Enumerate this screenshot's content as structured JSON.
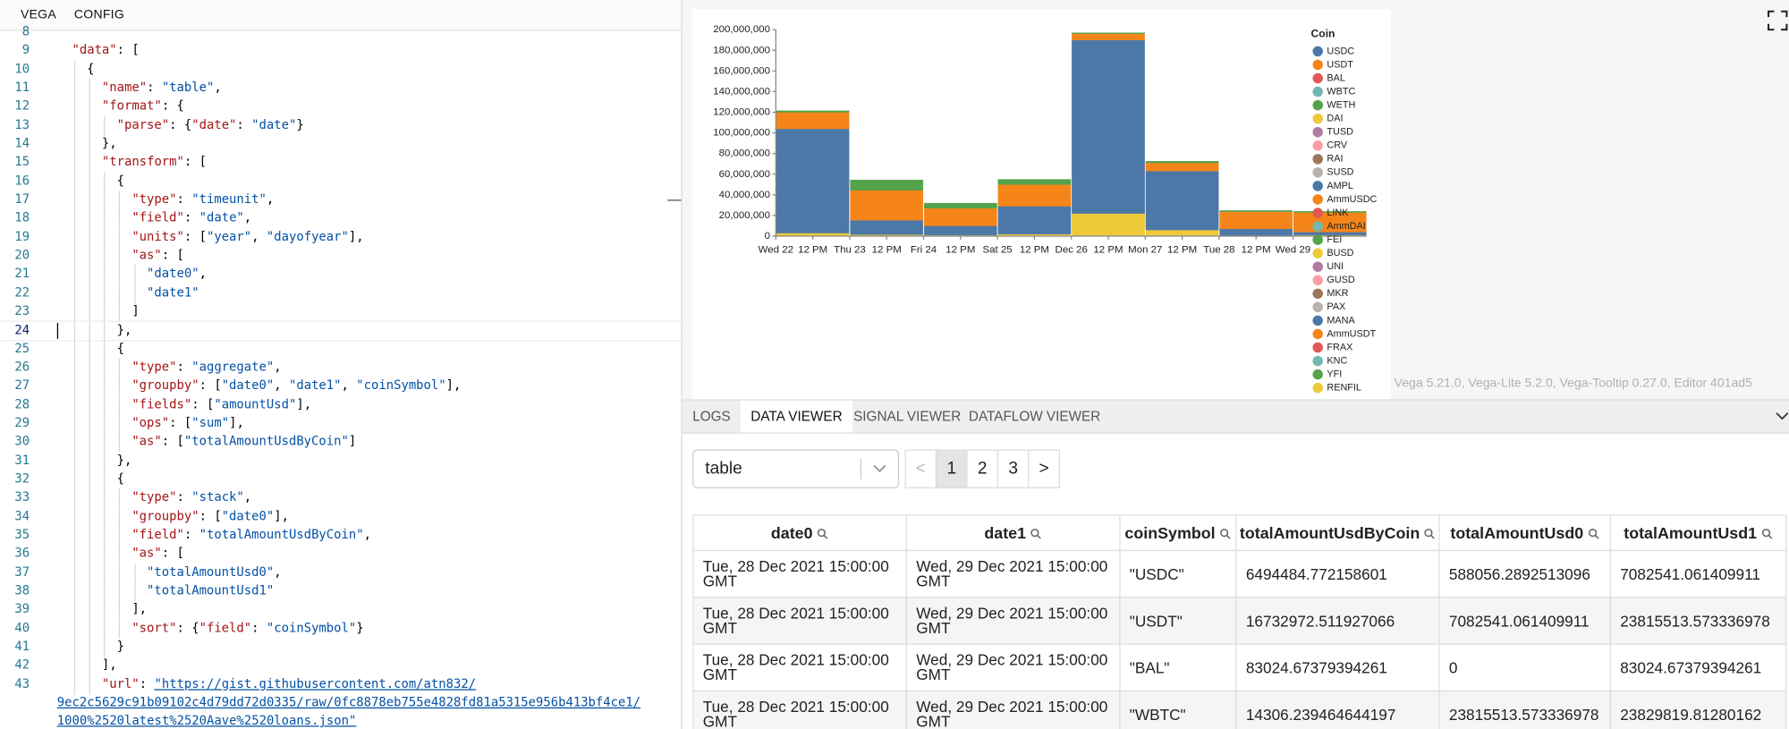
{
  "editor": {
    "tabs": [
      "VEGA",
      "CONFIG"
    ],
    "cursor_line": 24,
    "lines": [
      {
        "number": 8,
        "indent": 0,
        "tokens": []
      },
      {
        "number": 9,
        "indent": 1,
        "tokens": [
          [
            "\"data\"",
            "k"
          ],
          [
            ": [",
            "p"
          ]
        ]
      },
      {
        "number": 10,
        "indent": 2,
        "tokens": [
          [
            "{",
            "p"
          ]
        ]
      },
      {
        "number": 11,
        "indent": 3,
        "tokens": [
          [
            "\"name\"",
            "k"
          ],
          [
            ": ",
            "p"
          ],
          [
            "\"table\"",
            "s"
          ],
          [
            ",",
            "p"
          ]
        ]
      },
      {
        "number": 12,
        "indent": 3,
        "tokens": [
          [
            "\"format\"",
            "k"
          ],
          [
            ": {",
            "p"
          ]
        ]
      },
      {
        "number": 13,
        "indent": 4,
        "tokens": [
          [
            "\"parse\"",
            "k"
          ],
          [
            ": {",
            "p"
          ],
          [
            "\"date\"",
            "k"
          ],
          [
            ": ",
            "p"
          ],
          [
            "\"date\"",
            "s"
          ],
          [
            "}",
            "p"
          ]
        ]
      },
      {
        "number": 14,
        "indent": 3,
        "tokens": [
          [
            "},",
            "p"
          ]
        ]
      },
      {
        "number": 15,
        "indent": 3,
        "tokens": [
          [
            "\"transform\"",
            "k"
          ],
          [
            ": [",
            "p"
          ]
        ]
      },
      {
        "number": 16,
        "indent": 4,
        "tokens": [
          [
            "{",
            "p"
          ]
        ]
      },
      {
        "number": 17,
        "indent": 5,
        "tokens": [
          [
            "\"type\"",
            "k"
          ],
          [
            ": ",
            "p"
          ],
          [
            "\"timeunit\"",
            "s"
          ],
          [
            ",",
            "p"
          ]
        ]
      },
      {
        "number": 18,
        "indent": 5,
        "tokens": [
          [
            "\"field\"",
            "k"
          ],
          [
            ": ",
            "p"
          ],
          [
            "\"date\"",
            "s"
          ],
          [
            ",",
            "p"
          ]
        ]
      },
      {
        "number": 19,
        "indent": 5,
        "tokens": [
          [
            "\"units\"",
            "k"
          ],
          [
            ": [",
            "p"
          ],
          [
            "\"year\"",
            "s"
          ],
          [
            ", ",
            "p"
          ],
          [
            "\"dayofyear\"",
            "s"
          ],
          [
            "],",
            "p"
          ]
        ]
      },
      {
        "number": 20,
        "indent": 5,
        "tokens": [
          [
            "\"as\"",
            "k"
          ],
          [
            ": [",
            "p"
          ]
        ]
      },
      {
        "number": 21,
        "indent": 6,
        "tokens": [
          [
            "\"date0\"",
            "s"
          ],
          [
            ",",
            "p"
          ]
        ]
      },
      {
        "number": 22,
        "indent": 6,
        "tokens": [
          [
            "\"date1\"",
            "s"
          ]
        ]
      },
      {
        "number": 23,
        "indent": 5,
        "tokens": [
          [
            "]",
            "p"
          ]
        ]
      },
      {
        "number": 24,
        "indent": 4,
        "tokens": [
          [
            "},",
            "p"
          ]
        ]
      },
      {
        "number": 25,
        "indent": 4,
        "tokens": [
          [
            "{",
            "p"
          ]
        ]
      },
      {
        "number": 26,
        "indent": 5,
        "tokens": [
          [
            "\"type\"",
            "k"
          ],
          [
            ": ",
            "p"
          ],
          [
            "\"aggregate\"",
            "s"
          ],
          [
            ",",
            "p"
          ]
        ]
      },
      {
        "number": 27,
        "indent": 5,
        "tokens": [
          [
            "\"groupby\"",
            "k"
          ],
          [
            ": [",
            "p"
          ],
          [
            "\"date0\"",
            "s"
          ],
          [
            ", ",
            "p"
          ],
          [
            "\"date1\"",
            "s"
          ],
          [
            ", ",
            "p"
          ],
          [
            "\"coinSymbol\"",
            "s"
          ],
          [
            "],",
            "p"
          ]
        ]
      },
      {
        "number": 28,
        "indent": 5,
        "tokens": [
          [
            "\"fields\"",
            "k"
          ],
          [
            ": [",
            "p"
          ],
          [
            "\"amountUsd\"",
            "s"
          ],
          [
            "],",
            "p"
          ]
        ]
      },
      {
        "number": 29,
        "indent": 5,
        "tokens": [
          [
            "\"ops\"",
            "k"
          ],
          [
            ": [",
            "p"
          ],
          [
            "\"sum\"",
            "s"
          ],
          [
            "],",
            "p"
          ]
        ]
      },
      {
        "number": 30,
        "indent": 5,
        "tokens": [
          [
            "\"as\"",
            "k"
          ],
          [
            ": [",
            "p"
          ],
          [
            "\"totalAmountUsdByCoin\"",
            "s"
          ],
          [
            "]",
            "p"
          ]
        ]
      },
      {
        "number": 31,
        "indent": 4,
        "tokens": [
          [
            "},",
            "p"
          ]
        ]
      },
      {
        "number": 32,
        "indent": 4,
        "tokens": [
          [
            "{",
            "p"
          ]
        ]
      },
      {
        "number": 33,
        "indent": 5,
        "tokens": [
          [
            "\"type\"",
            "k"
          ],
          [
            ": ",
            "p"
          ],
          [
            "\"stack\"",
            "s"
          ],
          [
            ",",
            "p"
          ]
        ]
      },
      {
        "number": 34,
        "indent": 5,
        "tokens": [
          [
            "\"groupby\"",
            "k"
          ],
          [
            ": [",
            "p"
          ],
          [
            "\"date0\"",
            "s"
          ],
          [
            "],",
            "p"
          ]
        ]
      },
      {
        "number": 35,
        "indent": 5,
        "tokens": [
          [
            "\"field\"",
            "k"
          ],
          [
            ": ",
            "p"
          ],
          [
            "\"totalAmountUsdByCoin\"",
            "s"
          ],
          [
            ",",
            "p"
          ]
        ]
      },
      {
        "number": 36,
        "indent": 5,
        "tokens": [
          [
            "\"as\"",
            "k"
          ],
          [
            ": [",
            "p"
          ]
        ]
      },
      {
        "number": 37,
        "indent": 6,
        "tokens": [
          [
            "\"totalAmountUsd0\"",
            "s"
          ],
          [
            ",",
            "p"
          ]
        ]
      },
      {
        "number": 38,
        "indent": 6,
        "tokens": [
          [
            "\"totalAmountUsd1\"",
            "s"
          ]
        ]
      },
      {
        "number": 39,
        "indent": 5,
        "tokens": [
          [
            "],",
            "p"
          ]
        ]
      },
      {
        "number": 40,
        "indent": 5,
        "tokens": [
          [
            "\"sort\"",
            "k"
          ],
          [
            ": {",
            "p"
          ],
          [
            "\"field\"",
            "k"
          ],
          [
            ": ",
            "p"
          ],
          [
            "\"coinSymbol\"",
            "s"
          ],
          [
            "}",
            "p"
          ]
        ]
      },
      {
        "number": 41,
        "indent": 4,
        "tokens": [
          [
            "}",
            "p"
          ]
        ]
      },
      {
        "number": 42,
        "indent": 3,
        "tokens": [
          [
            "],",
            "p"
          ]
        ]
      },
      {
        "number": 43,
        "indent": 3,
        "tokens": [
          [
            "\"url\"",
            "k"
          ],
          [
            ": ",
            "p"
          ],
          [
            "\"https://gist.githubusercontent.com/atn832/",
            "u"
          ]
        ]
      },
      {
        "number": null,
        "indent": 0,
        "tokens": [
          [
            "9ec2c5629c91b09102c4d79dd72d0335/raw/0fc8878eb755e4828fd81a5315e956b413bf4ce1/",
            "u"
          ]
        ]
      },
      {
        "number": null,
        "indent": 0,
        "tokens": [
          [
            "1000%2520latest%2520Aave%2520loans.json\"",
            "u"
          ]
        ]
      }
    ]
  },
  "chart_data": {
    "type": "bar",
    "stacked": true,
    "stack_sort": "name",
    "legend_title": "Coin",
    "legend": "right",
    "grid": false,
    "ylim": [
      0,
      200000000
    ],
    "yticks": [
      0,
      {
        "value": 20000000,
        "label": "20,000,000"
      },
      {
        "value": 40000000,
        "label": "40,000,000"
      },
      {
        "value": 60000000,
        "label": "60,000,000"
      },
      {
        "value": 80000000,
        "label": "80,000,000"
      },
      {
        "value": 100000000,
        "label": "100,000,000"
      },
      {
        "value": 120000000,
        "label": "120,000,000"
      },
      {
        "value": 140000000,
        "label": "140,000,000"
      },
      {
        "value": 160000000,
        "label": "160,000,000"
      },
      {
        "value": 180000000,
        "label": "180,000,000"
      },
      {
        "value": 200000000,
        "label": "200,000,000"
      }
    ],
    "x_tick_labels": [
      "Wed 22",
      "12 PM",
      "Thu 23",
      "12 PM",
      "Fri 24",
      "12 PM",
      "Sat 25",
      "12 PM",
      "Dec 26",
      "12 PM",
      "Mon 27",
      "12 PM",
      "Tue 28",
      "12 PM",
      "Wed 29"
    ],
    "series": [
      {
        "name": "USDC",
        "color": "#4c78a8",
        "values": [
          101000000,
          14000000,
          9000000,
          27000000,
          168000000,
          57000000,
          6494484.772158601,
          3000000
        ]
      },
      {
        "name": "USDT",
        "color": "#f58518",
        "values": [
          16000000,
          29000000,
          17000000,
          21000000,
          6000000,
          8000000,
          16732972.511927066,
          19000000
        ]
      },
      {
        "name": "BAL",
        "color": "#e45756",
        "values": [
          0,
          0,
          0,
          0,
          0,
          0,
          83024.67379394261,
          0
        ]
      },
      {
        "name": "WBTC",
        "color": "#72b7b2",
        "values": [
          0,
          0,
          0,
          0,
          0,
          0,
          14306.239464644197,
          0
        ]
      },
      {
        "name": "WETH",
        "color": "#54a24b",
        "values": [
          1500000,
          10000000,
          5000000,
          5000000,
          1000000,
          1500000,
          1000000,
          1000000
        ]
      },
      {
        "name": "DAI",
        "color": "#eeca3b",
        "values": [
          3000000,
          1500000,
          1000000,
          2000000,
          22000000,
          6000000,
          500000,
          1000000
        ]
      },
      {
        "name": "TUSD",
        "color": "#b279a2",
        "values": [
          0,
          0,
          0,
          0,
          0,
          0,
          0,
          0
        ]
      },
      {
        "name": "CRV",
        "color": "#ff9da6",
        "values": [
          0,
          0,
          0,
          0,
          0,
          0,
          0,
          0
        ]
      },
      {
        "name": "RAI",
        "color": "#9d755d",
        "values": [
          0,
          0,
          0,
          0,
          0,
          0,
          0,
          0
        ]
      },
      {
        "name": "SUSD",
        "color": "#bab0ac",
        "values": [
          0,
          0,
          0,
          0,
          0,
          0,
          0,
          0
        ]
      },
      {
        "name": "AMPL",
        "color": "#4c78a8",
        "values": [
          0,
          0,
          0,
          0,
          0,
          0,
          0,
          0
        ]
      },
      {
        "name": "AmmUSDC",
        "color": "#f58518",
        "values": [
          0,
          0,
          0,
          0,
          0,
          0,
          0,
          0
        ]
      },
      {
        "name": "LINK",
        "color": "#e45756",
        "values": [
          0,
          0,
          0,
          0,
          0,
          0,
          0,
          0
        ]
      },
      {
        "name": "AmmDAI",
        "color": "#72b7b2",
        "values": [
          0,
          0,
          0,
          0,
          0,
          0,
          0,
          0
        ]
      },
      {
        "name": "FEI",
        "color": "#54a24b",
        "values": [
          0,
          0,
          0,
          0,
          0,
          0,
          0,
          0
        ]
      },
      {
        "name": "BUSD",
        "color": "#eeca3b",
        "values": [
          0,
          0,
          0,
          0,
          0,
          0,
          0,
          0
        ]
      },
      {
        "name": "UNI",
        "color": "#b279a2",
        "values": [
          0,
          0,
          0,
          0,
          0,
          0,
          0,
          0
        ]
      },
      {
        "name": "GUSD",
        "color": "#ff9da6",
        "values": [
          0,
          0,
          0,
          0,
          0,
          0,
          0,
          0
        ]
      },
      {
        "name": "MKR",
        "color": "#9d755d",
        "values": [
          0,
          0,
          0,
          0,
          0,
          0,
          0,
          0
        ]
      },
      {
        "name": "PAX",
        "color": "#bab0ac",
        "values": [
          0,
          0,
          0,
          0,
          0,
          0,
          0,
          0
        ]
      },
      {
        "name": "MANA",
        "color": "#4c78a8",
        "values": [
          0,
          0,
          0,
          0,
          0,
          0,
          0,
          0
        ]
      },
      {
        "name": "AmmUSDT",
        "color": "#f58518",
        "values": [
          0,
          0,
          0,
          0,
          0,
          0,
          0,
          0
        ]
      },
      {
        "name": "FRAX",
        "color": "#e45756",
        "values": [
          0,
          0,
          0,
          0,
          0,
          0,
          0,
          0
        ]
      },
      {
        "name": "KNC",
        "color": "#72b7b2",
        "values": [
          0,
          0,
          0,
          0,
          0,
          0,
          0,
          0
        ]
      },
      {
        "name": "YFI",
        "color": "#54a24b",
        "values": [
          0,
          0,
          0,
          0,
          0,
          0,
          0,
          0
        ]
      },
      {
        "name": "RENFIL",
        "color": "#eeca3b",
        "values": [
          0,
          0,
          0,
          0,
          0,
          0,
          0,
          0
        ]
      }
    ]
  },
  "version": "Vega 5.21.0, Vega-Lite 5.2.0, Vega-Tooltip 0.27.0, Editor 401ad5",
  "panel": {
    "tabs": [
      "LOGS",
      "DATA VIEWER",
      "SIGNAL VIEWER",
      "DATAFLOW VIEWER"
    ],
    "active_tab": 1
  },
  "data_viewer": {
    "dataset": "table",
    "prev": "<",
    "next": ">",
    "pages": [
      1,
      2,
      3
    ],
    "current_page": 1,
    "table": {
      "columns": [
        "date0",
        "date1",
        "coinSymbol",
        "totalAmountUsdByCoin",
        "totalAmountUsd0",
        "totalAmountUsd1"
      ],
      "rows": [
        [
          "Tue, 28 Dec 2021 15:00:00 GMT",
          "Wed, 29 Dec 2021 15:00:00 GMT",
          "\"USDC\"",
          "6494484.772158601",
          "588056.2892513096",
          "7082541.061409911"
        ],
        [
          "Tue, 28 Dec 2021 15:00:00 GMT",
          "Wed, 29 Dec 2021 15:00:00 GMT",
          "\"USDT\"",
          "16732972.511927066",
          "7082541.061409911",
          "23815513.573336978"
        ],
        [
          "Tue, 28 Dec 2021 15:00:00 GMT",
          "Wed, 29 Dec 2021 15:00:00 GMT",
          "\"BAL\"",
          "83024.67379394261",
          "0",
          "83024.67379394261"
        ],
        [
          "Tue, 28 Dec 2021 15:00:00 GMT",
          "Wed, 29 Dec 2021 15:00:00 GMT",
          "\"WBTC\"",
          "14306.239464644197",
          "23815513.573336978",
          "23829819.81280162"
        ]
      ]
    }
  }
}
